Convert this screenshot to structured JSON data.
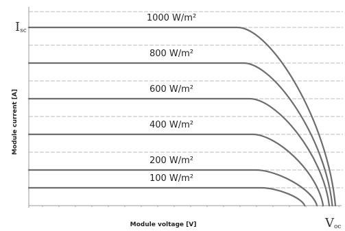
{
  "chart_data": {
    "type": "line",
    "title": "",
    "xlabel": "Module voltage [V]",
    "ylabel": "Module current [A]",
    "xlim": [
      0,
      100
    ],
    "ylim": [
      0,
      100
    ],
    "grid": "horizontal dashed",
    "markers": {
      "isc": {
        "main": "I",
        "sub": "sc"
      },
      "voc": {
        "main": "V",
        "sub": "oc"
      }
    },
    "series": [
      {
        "name": "1000 W/m²",
        "isc": 100,
        "voc": 100,
        "knee": 68
      },
      {
        "name": "800 W/m²",
        "isc": 80,
        "voc": 99,
        "knee": 70
      },
      {
        "name": "600 W/m²",
        "isc": 60,
        "voc": 98,
        "knee": 72
      },
      {
        "name": "400 W/m²",
        "isc": 40,
        "voc": 96,
        "knee": 73
      },
      {
        "name": "200 W/m²",
        "isc": 20,
        "voc": 94,
        "knee": 74
      },
      {
        "name": "100 W/m²",
        "isc": 10,
        "voc": 90,
        "knee": 76
      }
    ],
    "colors": {
      "curve": "#6d6d6d",
      "grid": "#bdbdbd",
      "axis": "#9a9a9a",
      "text": "#222222"
    }
  }
}
